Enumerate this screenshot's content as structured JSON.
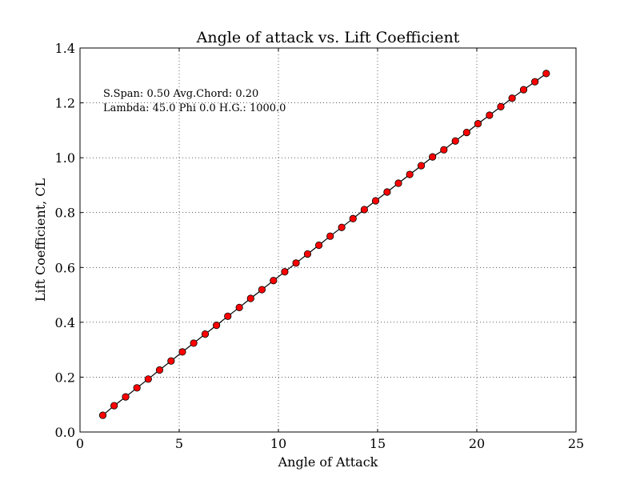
{
  "chart_data": {
    "type": "line",
    "title": "Angle of attack vs. Lift Coefficient",
    "xlabel": "Angle of Attack",
    "ylabel": "Lift Coefficient, CL",
    "xlim": [
      0,
      25
    ],
    "ylim": [
      0,
      1.4
    ],
    "xticks": [
      "0",
      "5",
      "10",
      "15",
      "20",
      "25"
    ],
    "yticks": [
      "0.0",
      "0.2",
      "0.4",
      "0.6",
      "0.8",
      "1.0",
      "1.2",
      "1.4"
    ],
    "grid": true,
    "annotations": [
      "S.Span: 0.50 Avg.Chord: 0.20",
      "Lambda: 45.0 Phi  0.0 H.G.: 1000.0"
    ],
    "series": [
      {
        "line_color": "#000000",
        "marker_color": "#ff0000",
        "x": [
          1.15,
          1.72,
          2.3,
          2.87,
          3.44,
          4.01,
          4.59,
          5.16,
          5.73,
          6.31,
          6.88,
          7.45,
          8.03,
          8.6,
          9.17,
          9.75,
          10.32,
          10.89,
          11.47,
          12.04,
          12.61,
          13.19,
          13.76,
          14.33,
          14.9,
          15.48,
          16.05,
          16.62,
          17.2,
          17.77,
          18.34,
          18.92,
          19.49,
          20.06,
          20.64,
          21.21,
          21.78,
          22.36,
          22.93,
          23.5
        ],
        "y": [
          0.061,
          0.096,
          0.128,
          0.161,
          0.193,
          0.226,
          0.259,
          0.292,
          0.324,
          0.357,
          0.389,
          0.422,
          0.454,
          0.487,
          0.519,
          0.552,
          0.584,
          0.616,
          0.649,
          0.681,
          0.714,
          0.746,
          0.778,
          0.811,
          0.843,
          0.875,
          0.907,
          0.939,
          0.971,
          1.003,
          1.029,
          1.061,
          1.092,
          1.124,
          1.155,
          1.186,
          1.217,
          1.248,
          1.277,
          1.307
        ]
      }
    ]
  }
}
